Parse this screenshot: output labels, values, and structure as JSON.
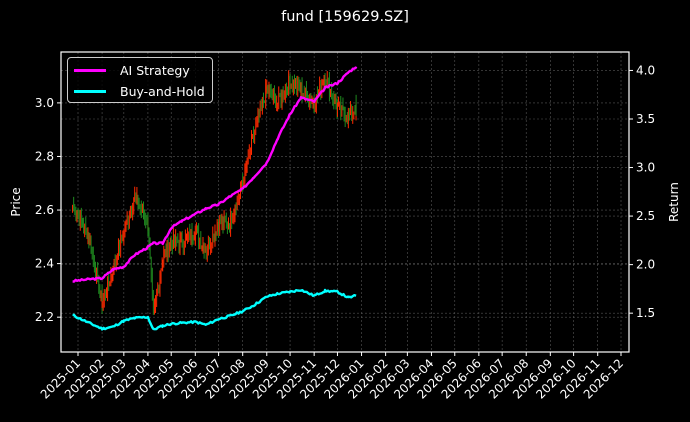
{
  "title": "fund [159629.SZ]",
  "colors": {
    "background": "#000000",
    "ai_strategy": "#ff00ff",
    "buy_and_hold": "#00ffff",
    "candle_up": "#ff2a00",
    "candle_down": "#1f8a1f",
    "grid": "#555555",
    "axis": "#ffffff"
  },
  "legend": {
    "items": [
      {
        "label": "AI Strategy",
        "color": "#ff00ff"
      },
      {
        "label": "Buy-and-Hold",
        "color": "#00ffff"
      }
    ]
  },
  "axes": {
    "left_label": "Price",
    "right_label": "Return",
    "left_ticks": [
      "2.2",
      "2.4",
      "2.6",
      "2.8",
      "3.0"
    ],
    "right_ticks": [
      "1.5",
      "2.0",
      "2.5",
      "3.0",
      "3.5",
      "4.0"
    ],
    "x_ticks": [
      "2025-01",
      "2025-02",
      "2025-03",
      "2025-04",
      "2025-05",
      "2025-06",
      "2025-07",
      "2025-08",
      "2025-09",
      "2025-10",
      "2025-11",
      "2025-12",
      "2026-01",
      "2026-02",
      "2026-03",
      "2026-04",
      "2026-05",
      "2026-06",
      "2026-07",
      "2026-08",
      "2026-09",
      "2026-10",
      "2026-11",
      "2026-12"
    ]
  },
  "chart_data": {
    "type": "line",
    "title": "fund [159629.SZ]",
    "xlabel": "",
    "ylabel": "Price",
    "ylabel_right": "Return",
    "ylim": [
      2.07,
      3.19
    ],
    "ylim_right": [
      1.1,
      4.19
    ],
    "grid": true,
    "legend_position": "upper left",
    "x": [
      "2024-12-25",
      "2025-01-15",
      "2025-02-01",
      "2025-02-15",
      "2025-03-01",
      "2025-03-15",
      "2025-04-01",
      "2025-04-08",
      "2025-04-20",
      "2025-05-01",
      "2025-05-15",
      "2025-06-01",
      "2025-06-15",
      "2025-07-01",
      "2025-07-15",
      "2025-08-01",
      "2025-08-15",
      "2025-09-01",
      "2025-09-15",
      "2025-10-01",
      "2025-10-15",
      "2025-11-01",
      "2025-11-15",
      "2025-12-01",
      "2025-12-15",
      "2025-12-25"
    ],
    "series": [
      {
        "name": "AI Strategy",
        "axis": "right",
        "values": [
          1.83,
          1.85,
          1.86,
          1.95,
          1.98,
          2.1,
          2.18,
          2.22,
          2.22,
          2.38,
          2.45,
          2.52,
          2.58,
          2.62,
          2.7,
          2.78,
          2.9,
          3.05,
          3.3,
          3.55,
          3.72,
          3.68,
          3.82,
          3.87,
          3.98,
          4.04
        ]
      },
      {
        "name": "Buy-and-Hold",
        "axis": "right",
        "values": [
          1.48,
          1.4,
          1.34,
          1.36,
          1.42,
          1.45,
          1.46,
          1.33,
          1.37,
          1.39,
          1.4,
          1.41,
          1.38,
          1.44,
          1.47,
          1.52,
          1.58,
          1.67,
          1.7,
          1.72,
          1.74,
          1.68,
          1.73,
          1.72,
          1.66,
          1.68
        ]
      },
      {
        "name": "Price (candles)",
        "axis": "left",
        "values": [
          2.62,
          2.5,
          2.25,
          2.38,
          2.52,
          2.65,
          2.55,
          2.2,
          2.42,
          2.48,
          2.48,
          2.52,
          2.45,
          2.55,
          2.55,
          2.7,
          2.88,
          3.05,
          3.0,
          3.08,
          3.05,
          3.0,
          3.1,
          2.98,
          2.95,
          2.98
        ]
      }
    ]
  }
}
